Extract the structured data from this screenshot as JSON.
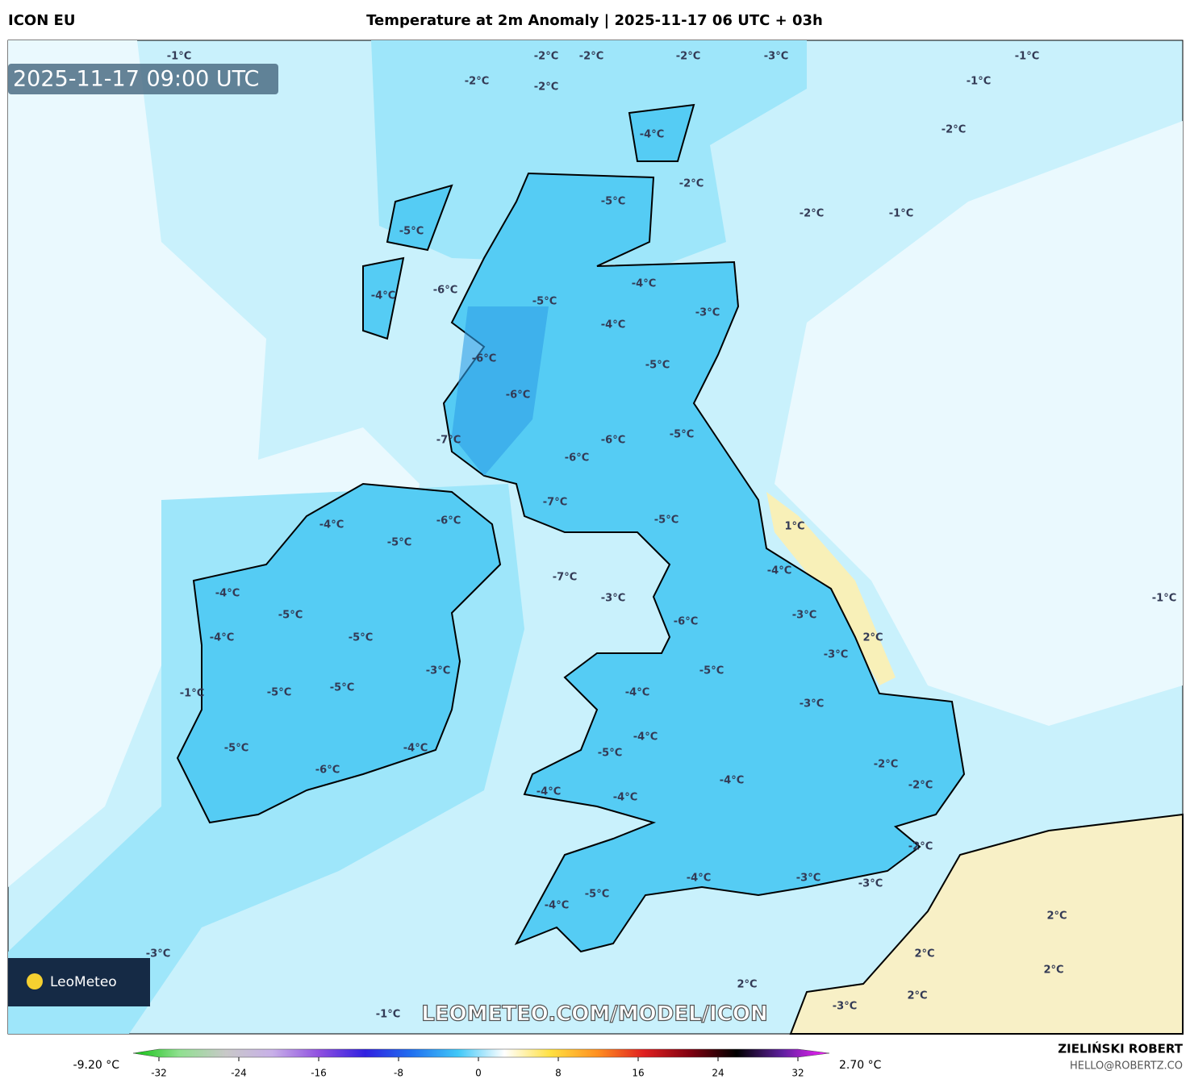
{
  "header": {
    "model": "ICON EU",
    "title": "Temperature at 2m Anomaly | 2025-11-17 06 UTC + 03h"
  },
  "timestamp": "2025-11-17 09:00 UTC",
  "contour_labels": [
    "-1°C",
    "-2°C",
    "-2°C",
    "-2°C",
    "-3°C",
    "-1°C",
    "-2°C",
    "-2°C",
    "-1°C",
    "-2°C",
    "-4°C",
    "-2°C",
    "-2°C",
    "-1°C",
    "-5°C",
    "-5°C",
    "-6°C",
    "-4°C",
    "-5°C",
    "-4°C",
    "-3°C",
    "-4°C",
    "-6°C",
    "-5°C",
    "-6°C",
    "-7°C",
    "-6°C",
    "-5°C",
    "-6°C",
    "-6°C",
    "-4°C",
    "-5°C",
    "-7°C",
    "-5°C",
    "1°C",
    "-7°C",
    "-4°C",
    "-4°C",
    "-3°C",
    "-1°C",
    "-5°C",
    "-6°C",
    "-3°C",
    "-4°C",
    "-5°C",
    "2°C",
    "-3°C",
    "-3°C",
    "-5°C",
    "-1°C",
    "-5°C",
    "-5°C",
    "-4°C",
    "-3°C",
    "-4°C",
    "-5°C",
    "-5°C",
    "-4°C",
    "-6°C",
    "-2°C",
    "-4°C",
    "-2°C",
    "-4°C",
    "-4°C",
    "-2°C",
    "-3°C",
    "-4°C",
    "-3°C",
    "-5°C",
    "-4°C",
    "2°C",
    "-3°C",
    "2°C",
    "2°C",
    "2°C",
    "2°C",
    "-3°C",
    "-1°C"
  ],
  "logo": "LeoMeteo",
  "watermark": "LEOMETEO.COM/MODEL/ICON",
  "colorbar": {
    "min_label": "-9.20 °C",
    "max_label": "2.70 °C",
    "lim": [
      -32,
      32
    ],
    "ticks": [
      -32,
      -24,
      -16,
      -8,
      0,
      8,
      16,
      24,
      32
    ],
    "colors": [
      "#10c010",
      "#90e090",
      "#c8c8c8",
      "#c8b0e8",
      "#9050e0",
      "#3020e0",
      "#2070f0",
      "#40c8f8",
      "#ffffff",
      "#ffe040",
      "#ff9020",
      "#e02020",
      "#800010",
      "#000000",
      "#6020a0",
      "#ff20ff"
    ]
  },
  "footer": {
    "author": "ZIELIŃSKI ROBERT",
    "email": "HELLO@ROBERTZ.CO"
  }
}
